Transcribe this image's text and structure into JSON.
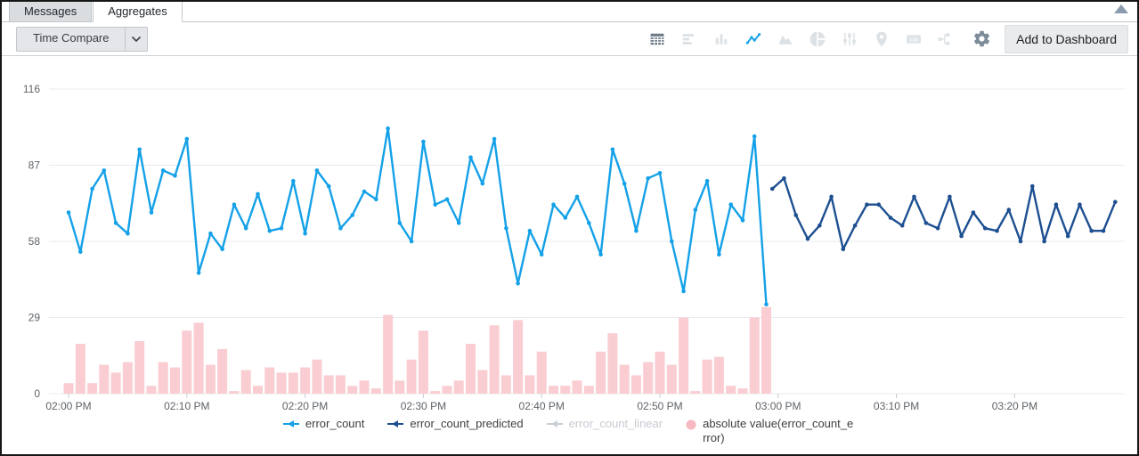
{
  "tabs": [
    {
      "label": "Messages",
      "active": false
    },
    {
      "label": "Aggregates",
      "active": true
    }
  ],
  "toolbar": {
    "time_compare_label": "Time Compare",
    "add_to_dashboard_label": "Add to Dashboard",
    "numbers_icon_text": "123",
    "icons": [
      {
        "name": "table",
        "state": "default"
      },
      {
        "name": "horizontal-bar-chart",
        "state": "inactive"
      },
      {
        "name": "column-chart",
        "state": "inactive"
      },
      {
        "name": "line-chart",
        "state": "active"
      },
      {
        "name": "area-chart",
        "state": "inactive"
      },
      {
        "name": "pie-chart",
        "state": "inactive"
      },
      {
        "name": "sliders",
        "state": "inactive"
      },
      {
        "name": "map-pin",
        "state": "inactive"
      },
      {
        "name": "single-value",
        "state": "inactive"
      },
      {
        "name": "branch",
        "state": "inactive"
      },
      {
        "name": "gear",
        "state": "default"
      }
    ]
  },
  "colors": {
    "accent_blue": "#14a1e8",
    "predicted_navy": "#1d4f91",
    "error_bar_pink": "#f9cdd2",
    "legend_pink_dot": "#f7b9c0",
    "disabled_gray": "#c9ced3",
    "icon_inactive": "#dde2e6",
    "icon_dark": "#6e7b88",
    "gear_gray": "#7e8c9a"
  },
  "chart_data": {
    "type": "line",
    "title": "",
    "xlabel": "",
    "ylabel": "",
    "grid": true,
    "legend_position": "bottom",
    "x_axis": {
      "ticks": [
        "02:00 PM",
        "02:10 PM",
        "02:20 PM",
        "02:30 PM",
        "02:40 PM",
        "02:50 PM",
        "03:00 PM",
        "03:10 PM",
        "03:20 PM"
      ],
      "tick_minutes": [
        0,
        10,
        20,
        30,
        40,
        50,
        60,
        70,
        80
      ]
    },
    "y_axis": {
      "ticks": [
        0,
        29,
        58,
        87,
        116
      ],
      "range": [
        0,
        116
      ]
    },
    "series": [
      {
        "name": "error_count",
        "type": "line",
        "color": "#14a1e8",
        "disabled": false,
        "start_minute": 0,
        "step": 1,
        "values": [
          69,
          54,
          78,
          85,
          65,
          61,
          93,
          69,
          85,
          83,
          97,
          46,
          61,
          55,
          72,
          63,
          76,
          62,
          63,
          81,
          61,
          85,
          79,
          63,
          68,
          77,
          74,
          101,
          65,
          58,
          96,
          72,
          74,
          65,
          90,
          80,
          97,
          63,
          42,
          62,
          53,
          72,
          67,
          75,
          65,
          53,
          93,
          80,
          62,
          82,
          84,
          58,
          39,
          70,
          81,
          53,
          72,
          66,
          98,
          34
        ]
      },
      {
        "name": "error_count_predicted",
        "type": "line",
        "color": "#1d4f91",
        "disabled": false,
        "start_minute": 59.5,
        "step": 1,
        "values": [
          78,
          82,
          68,
          59,
          64,
          75,
          55,
          64,
          72,
          72,
          67,
          64,
          75,
          65,
          63,
          75,
          60,
          69,
          63,
          62,
          70,
          58,
          79,
          58,
          72,
          60,
          72,
          62,
          62,
          73
        ]
      },
      {
        "name": "error_count_linear",
        "type": "line",
        "color": "#c9ced3",
        "disabled": true,
        "start_minute": 0,
        "step": 1,
        "values": []
      },
      {
        "name": "absolute value(error_count_error)",
        "type": "bar",
        "color": "#f9cdd2",
        "legend_color": "#f7b9c0",
        "legend_wrap": true,
        "disabled": false,
        "start_minute": 0,
        "step": 1,
        "values": [
          4,
          19,
          4,
          11,
          8,
          12,
          20,
          3,
          12,
          10,
          24,
          27,
          11,
          17,
          1,
          9,
          3,
          10,
          8,
          8,
          10,
          13,
          7,
          7,
          3,
          5,
          2,
          30,
          5,
          13,
          24,
          1,
          3,
          5,
          19,
          9,
          26,
          7,
          28,
          7,
          16,
          3,
          3,
          5,
          3,
          16,
          23,
          11,
          7,
          12,
          16,
          11,
          29,
          1,
          13,
          14,
          3,
          2,
          29,
          33
        ]
      }
    ]
  }
}
